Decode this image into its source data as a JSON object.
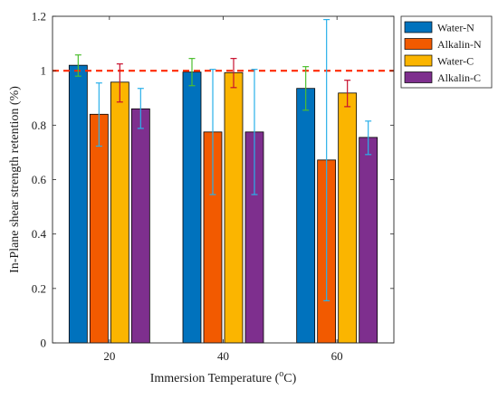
{
  "chart_data": {
    "type": "bar",
    "categories": [
      "20",
      "40",
      "60"
    ],
    "xlabel": "Immersion Temperature",
    "xlabel_unit_base": "C",
    "xlabel_unit_sup": "o",
    "ylabel": "In-Plane shear strength retention (%)",
    "ylim": [
      0,
      1.2
    ],
    "yticks": [
      "0",
      "0.2",
      "0.4",
      "0.6",
      "0.8",
      "1",
      "1.2"
    ],
    "reference_line": {
      "y": 1.0,
      "style": "dashed",
      "color": "#ff2a00"
    },
    "legend_position": "outside-top-right",
    "series": [
      {
        "name": "Water-N",
        "color": "#0072bd",
        "error_color": "#4dbe2f",
        "values": [
          1.02,
          0.995,
          0.935
        ],
        "err_low": [
          0.98,
          0.945,
          0.855
        ],
        "err_high": [
          1.058,
          1.045,
          1.015
        ]
      },
      {
        "name": "Alkalin-N",
        "color": "#f25a00",
        "error_color": "#2ab0ea",
        "values": [
          0.84,
          0.775,
          0.672
        ],
        "err_low": [
          0.723,
          0.545,
          0.155
        ],
        "err_high": [
          0.955,
          1.005,
          1.188
        ]
      },
      {
        "name": "Water-C",
        "color": "#fbb500",
        "error_color": "#c8102e",
        "values": [
          0.958,
          0.993,
          0.918
        ],
        "err_low": [
          0.885,
          0.938,
          0.868
        ],
        "err_high": [
          1.025,
          1.045,
          0.965
        ]
      },
      {
        "name": "Alkalin-C",
        "color": "#7e2f8e",
        "error_color": "#2ab0ea",
        "values": [
          0.86,
          0.775,
          0.755
        ],
        "err_low": [
          0.788,
          0.545,
          0.692
        ],
        "err_high": [
          0.935,
          1.005,
          0.815
        ]
      }
    ]
  }
}
